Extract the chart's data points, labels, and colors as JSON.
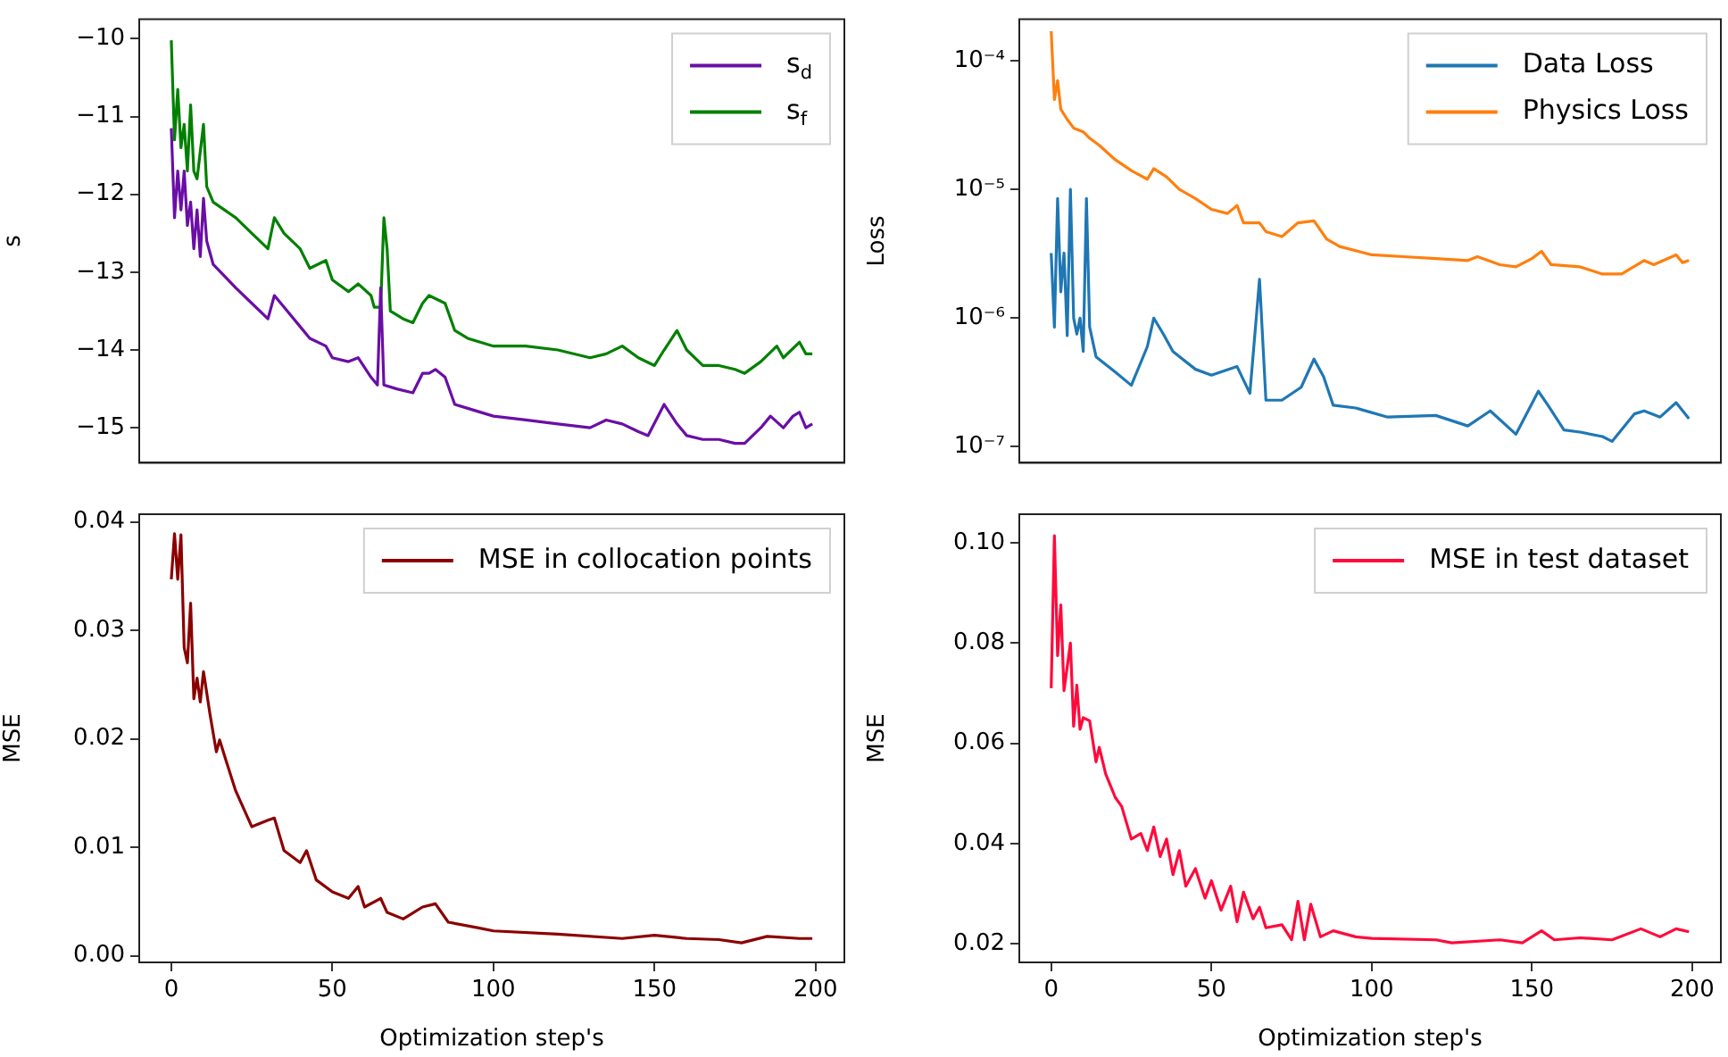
{
  "chart_data": [
    {
      "type": "line",
      "ylabel": "s",
      "xlim": [
        -9.95,
        208.95
      ],
      "ylim": [
        -15.45,
        -9.75
      ],
      "yticks": [
        {
          "value": -15,
          "label": "−15"
        },
        {
          "value": -14,
          "label": "−14"
        },
        {
          "value": -13,
          "label": "−13"
        },
        {
          "value": -12,
          "label": "−12"
        },
        {
          "value": -11,
          "label": "−11"
        },
        {
          "value": -10,
          "label": "−10"
        }
      ],
      "legend": "top right",
      "tick_labels": "y",
      "series": [
        {
          "name": "s$_{d}$",
          "color": "#6a0ea6",
          "x": [
            0,
            1,
            2,
            3,
            4,
            5,
            6,
            7,
            8,
            9,
            10,
            11,
            13,
            20,
            25,
            30,
            32,
            35,
            40,
            43,
            48,
            50,
            55,
            58,
            62,
            64,
            65,
            66,
            70,
            75,
            78,
            80,
            82,
            85,
            88,
            92,
            100,
            110,
            120,
            130,
            135,
            140,
            145,
            148,
            153,
            157,
            160,
            165,
            170,
            175,
            178,
            183,
            186,
            190,
            193,
            195,
            197,
            199
          ],
          "values": [
            -11.15,
            -12.3,
            -11.7,
            -12.2,
            -11.7,
            -12.4,
            -12.1,
            -12.7,
            -12.2,
            -12.8,
            -12.05,
            -12.6,
            -12.9,
            -13.2,
            -13.4,
            -13.6,
            -13.3,
            -13.45,
            -13.7,
            -13.85,
            -13.95,
            -14.1,
            -14.15,
            -14.1,
            -14.35,
            -14.45,
            -13.2,
            -14.45,
            -14.5,
            -14.55,
            -14.3,
            -14.3,
            -14.25,
            -14.35,
            -14.7,
            -14.75,
            -14.85,
            -14.9,
            -14.95,
            -15.0,
            -14.9,
            -14.95,
            -15.05,
            -15.1,
            -14.7,
            -14.95,
            -15.1,
            -15.15,
            -15.15,
            -15.2,
            -15.2,
            -15.0,
            -14.85,
            -15.0,
            -14.85,
            -14.8,
            -15.0,
            -14.95
          ]
        },
        {
          "name": "s$_{f}$",
          "color": "#008000",
          "x": [
            0,
            1,
            2,
            3,
            4,
            5,
            6,
            7,
            8,
            10,
            11,
            13,
            20,
            25,
            30,
            32,
            35,
            40,
            43,
            48,
            50,
            55,
            58,
            62,
            63,
            65,
            66,
            67,
            68,
            72,
            75,
            78,
            80,
            85,
            88,
            92,
            100,
            110,
            120,
            130,
            135,
            140,
            145,
            150,
            153,
            157,
            160,
            165,
            170,
            175,
            178,
            183,
            188,
            190,
            195,
            197,
            199
          ],
          "values": [
            -10.02,
            -11.3,
            -10.65,
            -11.4,
            -11.1,
            -11.7,
            -10.85,
            -11.7,
            -11.8,
            -11.1,
            -11.9,
            -12.1,
            -12.3,
            -12.5,
            -12.7,
            -12.3,
            -12.5,
            -12.7,
            -12.95,
            -12.85,
            -13.1,
            -13.25,
            -13.15,
            -13.3,
            -13.45,
            -13.45,
            -12.3,
            -12.7,
            -13.5,
            -13.6,
            -13.65,
            -13.4,
            -13.3,
            -13.4,
            -13.75,
            -13.85,
            -13.95,
            -13.95,
            -14.0,
            -14.1,
            -14.05,
            -13.95,
            -14.1,
            -14.2,
            -14.0,
            -13.75,
            -14.0,
            -14.2,
            -14.2,
            -14.25,
            -14.3,
            -14.15,
            -13.95,
            -14.1,
            -13.9,
            -14.05,
            -14.05
          ]
        }
      ]
    },
    {
      "type": "line",
      "ylabel": "Loss",
      "log": "y",
      "xlim": [
        -9.95,
        208.95
      ],
      "ylim": [
        7.5e-08,
        0.00021
      ],
      "yticks": [
        {
          "value": 1e-07,
          "label": "10⁻⁷"
        },
        {
          "value": 1e-06,
          "label": "10⁻⁶"
        },
        {
          "value": 1e-05,
          "label": "10⁻⁵"
        },
        {
          "value": 0.0001,
          "label": "10⁻⁴"
        }
      ],
      "legend": "top right",
      "tick_labels": "y",
      "series": [
        {
          "name": "Data Loss",
          "color": "#1f77b4",
          "x": [
            0,
            1,
            2,
            3,
            4,
            5,
            6,
            7,
            8,
            9,
            10,
            11,
            12,
            14,
            20,
            25,
            30,
            32,
            35,
            38,
            45,
            50,
            58,
            62,
            65,
            67,
            72,
            78,
            82,
            85,
            88,
            95,
            105,
            120,
            130,
            137,
            145,
            152,
            155,
            160,
            165,
            172,
            175,
            182,
            185,
            190,
            195,
            199
          ],
          "values": [
            3.2e-06,
            8.5e-07,
            8.5e-06,
            1.6e-06,
            3.2e-06,
            7.3e-07,
            1e-05,
            1e-06,
            7.5e-07,
            1e-06,
            5.5e-07,
            8.5e-06,
            8.5e-07,
            5e-07,
            3.8e-07,
            3e-07,
            6e-07,
            1e-06,
            7.5e-07,
            5.5e-07,
            4e-07,
            3.6e-07,
            4.2e-07,
            2.6e-07,
            2e-06,
            2.3e-07,
            2.3e-07,
            2.9e-07,
            4.8e-07,
            3.5e-07,
            2.1e-07,
            2e-07,
            1.7e-07,
            1.75e-07,
            1.45e-07,
            1.9e-07,
            1.25e-07,
            2.7e-07,
            2.1e-07,
            1.35e-07,
            1.3e-07,
            1.2e-07,
            1.1e-07,
            1.8e-07,
            1.9e-07,
            1.7e-07,
            2.2e-07,
            1.65e-07
          ]
        },
        {
          "name": "Physics Loss",
          "color": "#ff7f0e",
          "x": [
            0,
            1,
            2,
            3,
            5,
            7,
            10,
            12,
            15,
            20,
            25,
            30,
            32,
            36,
            40,
            45,
            50,
            55,
            58,
            60,
            65,
            67,
            72,
            77,
            82,
            86,
            90,
            100,
            110,
            120,
            130,
            133,
            140,
            145,
            150,
            153,
            156,
            165,
            172,
            178,
            185,
            188,
            195,
            197,
            199
          ],
          "values": [
            0.00017,
            5e-05,
            7e-05,
            4.2e-05,
            3.5e-05,
            3e-05,
            2.8e-05,
            2.5e-05,
            2.2e-05,
            1.7e-05,
            1.4e-05,
            1.2e-05,
            1.45e-05,
            1.25e-05,
            1e-05,
            8.5e-06,
            7e-06,
            6.5e-06,
            7.5e-06,
            5.5e-06,
            5.5e-06,
            4.7e-06,
            4.3e-06,
            5.5e-06,
            5.7e-06,
            4.1e-06,
            3.6e-06,
            3.1e-06,
            3e-06,
            2.9e-06,
            2.8e-06,
            3e-06,
            2.6e-06,
            2.5e-06,
            2.9e-06,
            3.3e-06,
            2.6e-06,
            2.5e-06,
            2.2e-06,
            2.2e-06,
            2.8e-06,
            2.6e-06,
            3.1e-06,
            2.7e-06,
            2.8e-06
          ]
        }
      ]
    },
    {
      "type": "line",
      "ylabel": "MSE",
      "xlabel": "Optimization step's",
      "xlim": [
        -9.95,
        208.95
      ],
      "xticks": [
        0,
        50,
        100,
        150,
        200
      ],
      "ylim": [
        -0.0006,
        0.0407
      ],
      "yticks": [
        {
          "value": 0,
          "label": "0.00"
        },
        {
          "value": 0.01,
          "label": "0.01"
        },
        {
          "value": 0.02,
          "label": "0.02"
        },
        {
          "value": 0.03,
          "label": "0.03"
        },
        {
          "value": 0.04,
          "label": "0.04"
        }
      ],
      "legend": "top right",
      "series": [
        {
          "name": "MSE in collocation points",
          "color": "#8b0000",
          "x": [
            0,
            1,
            2,
            3,
            4,
            5,
            6,
            7,
            8,
            9,
            10,
            12,
            14,
            15,
            17,
            20,
            25,
            30,
            32,
            35,
            40,
            42,
            45,
            50,
            55,
            58,
            60,
            65,
            67,
            72,
            78,
            82,
            86,
            95,
            100,
            120,
            140,
            150,
            160,
            170,
            177,
            185,
            195,
            199
          ],
          "values": [
            0.0347,
            0.0389,
            0.0347,
            0.0388,
            0.0284,
            0.027,
            0.0325,
            0.0237,
            0.0256,
            0.0234,
            0.0262,
            0.0223,
            0.0188,
            0.0199,
            0.018,
            0.0152,
            0.0119,
            0.0125,
            0.0127,
            0.0097,
            0.0086,
            0.0097,
            0.007,
            0.0059,
            0.0053,
            0.0064,
            0.0045,
            0.0053,
            0.004,
            0.0034,
            0.0045,
            0.0048,
            0.0031,
            0.0026,
            0.0023,
            0.002,
            0.0016,
            0.0019,
            0.0016,
            0.0015,
            0.0012,
            0.0018,
            0.0016,
            0.0016
          ]
        }
      ]
    },
    {
      "type": "line",
      "ylabel": "MSE",
      "xlabel": "Optimization step's",
      "xlim": [
        -9.95,
        208.95
      ],
      "xticks": [
        0,
        50,
        100,
        150,
        200
      ],
      "ylim": [
        0.0163,
        0.1057
      ],
      "yticks": [
        {
          "value": 0.02,
          "label": "0.02"
        },
        {
          "value": 0.04,
          "label": "0.04"
        },
        {
          "value": 0.06,
          "label": "0.06"
        },
        {
          "value": 0.08,
          "label": "0.08"
        },
        {
          "value": 0.1,
          "label": "0.10"
        }
      ],
      "legend": "top right",
      "series": [
        {
          "name": "MSE in test dataset",
          "color": "#ff0a3c",
          "x": [
            0,
            1,
            2,
            3,
            4,
            6,
            7,
            8,
            9,
            10,
            12,
            14,
            15,
            17,
            20,
            22,
            25,
            28,
            30,
            32,
            34,
            36,
            38,
            40,
            42,
            45,
            48,
            50,
            53,
            56,
            58,
            60,
            63,
            65,
            67,
            72,
            75,
            77,
            79,
            81,
            84,
            88,
            95,
            100,
            120,
            125,
            140,
            147,
            153,
            157,
            165,
            175,
            184,
            190,
            195,
            199
          ],
          "values": [
            0.071,
            0.1014,
            0.0775,
            0.0876,
            0.0705,
            0.08,
            0.0634,
            0.0716,
            0.0628,
            0.0651,
            0.0645,
            0.0563,
            0.0592,
            0.0539,
            0.0492,
            0.0474,
            0.0409,
            0.042,
            0.0386,
            0.0433,
            0.0374,
            0.0409,
            0.0338,
            0.0386,
            0.0315,
            0.035,
            0.0291,
            0.0326,
            0.0267,
            0.0315,
            0.0244,
            0.0303,
            0.025,
            0.0273,
            0.0232,
            0.0238,
            0.0208,
            0.0285,
            0.0208,
            0.0279,
            0.0214,
            0.0226,
            0.0214,
            0.0211,
            0.0208,
            0.0202,
            0.0208,
            0.0202,
            0.0226,
            0.0208,
            0.0212,
            0.0208,
            0.023,
            0.0214,
            0.023,
            0.0224
          ]
        }
      ]
    }
  ]
}
